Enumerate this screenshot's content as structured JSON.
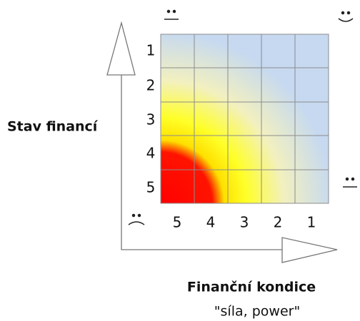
{
  "y_axis": {
    "label": "Stav financí",
    "ticks": [
      "1",
      "2",
      "3",
      "4",
      "5"
    ]
  },
  "x_axis": {
    "label": "Finanční kondice",
    "sublabel": "\"síla, power\"",
    "ticks": [
      "5",
      "4",
      "3",
      "2",
      "1"
    ]
  }
}
